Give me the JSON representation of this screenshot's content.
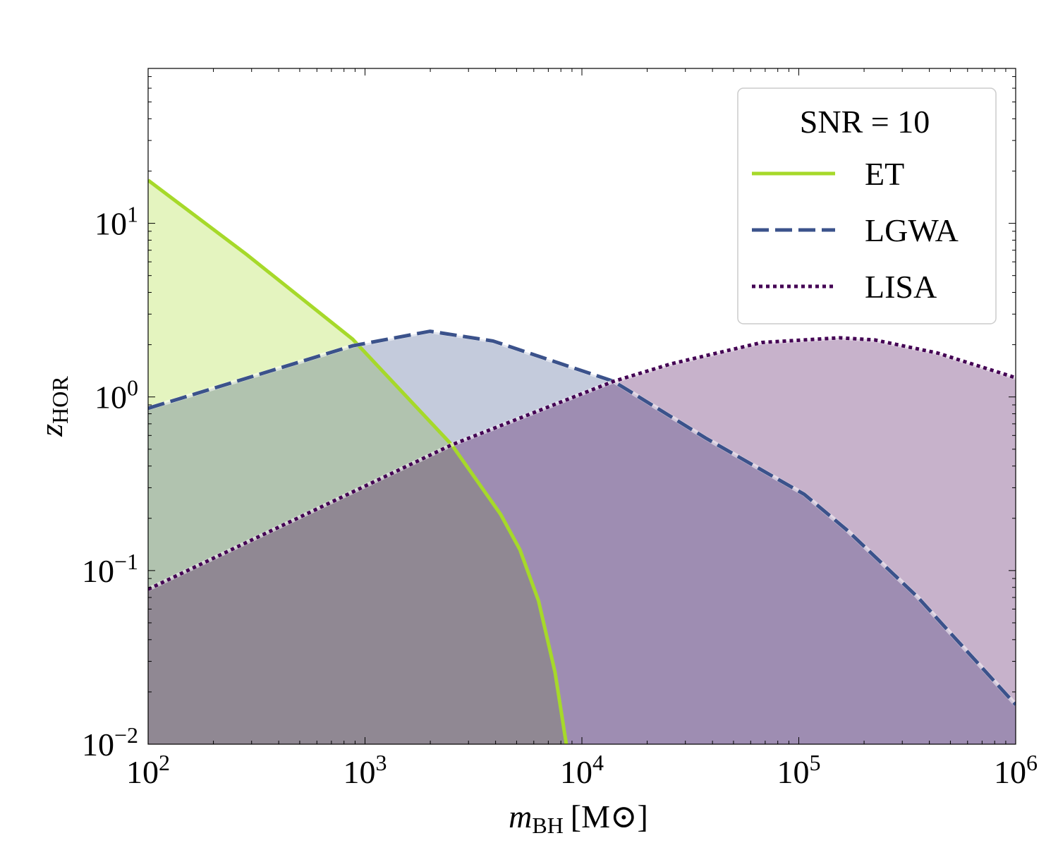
{
  "chart_data": {
    "type": "area",
    "xlabel": {
      "main": "m",
      "sub": "BH",
      "unit": "[M⊙]"
    },
    "ylabel": {
      "main": "z",
      "sub": "HOR"
    },
    "xscale": "log",
    "yscale": "log",
    "xlim": [
      100,
      1000000
    ],
    "ylim": [
      0.01,
      78
    ],
    "grid": false,
    "xticks": [
      {
        "base": "10",
        "exp": "2",
        "value": 100
      },
      {
        "base": "10",
        "exp": "3",
        "value": 1000
      },
      {
        "base": "10",
        "exp": "4",
        "value": 10000
      },
      {
        "base": "10",
        "exp": "5",
        "value": 100000
      },
      {
        "base": "10",
        "exp": "6",
        "value": 1000000
      }
    ],
    "yticks": [
      {
        "base": "10",
        "exp": "−2",
        "value": 0.01
      },
      {
        "base": "10",
        "exp": "−1",
        "value": 0.1
      },
      {
        "base": "10",
        "exp": "0",
        "value": 1
      },
      {
        "base": "10",
        "exp": "1",
        "value": 10
      }
    ],
    "legend": {
      "title": "SNR = 10",
      "placement": "top-right"
    },
    "series": [
      {
        "name": "ET",
        "color": "#a6d92a",
        "style": "solid",
        "x": [
          100,
          285,
          877,
          2512,
          4227,
          5176,
          6310,
          7516,
          8472
        ],
        "y": [
          17.7,
          6.6,
          2.15,
          0.53,
          0.21,
          0.132,
          0.067,
          0.026,
          0.01
        ]
      },
      {
        "name": "LGWA",
        "color": "#3b528b",
        "style": "dashed",
        "x": [
          100,
          877,
          1995,
          3890,
          14000,
          37150,
          105900,
          166000,
          350800,
          1000000
        ],
        "y": [
          0.86,
          1.97,
          2.39,
          2.1,
          1.23,
          0.58,
          0.275,
          0.172,
          0.071,
          0.0169
        ]
      },
      {
        "name": "LISA",
        "color": "#440154",
        "style": "dotted",
        "x": [
          100,
          2512,
          14000,
          25700,
          67600,
          153800,
          223900,
          436500,
          1000000
        ],
        "y": [
          0.078,
          0.53,
          1.23,
          1.55,
          2.06,
          2.19,
          2.13,
          1.79,
          1.29
        ]
      }
    ]
  }
}
